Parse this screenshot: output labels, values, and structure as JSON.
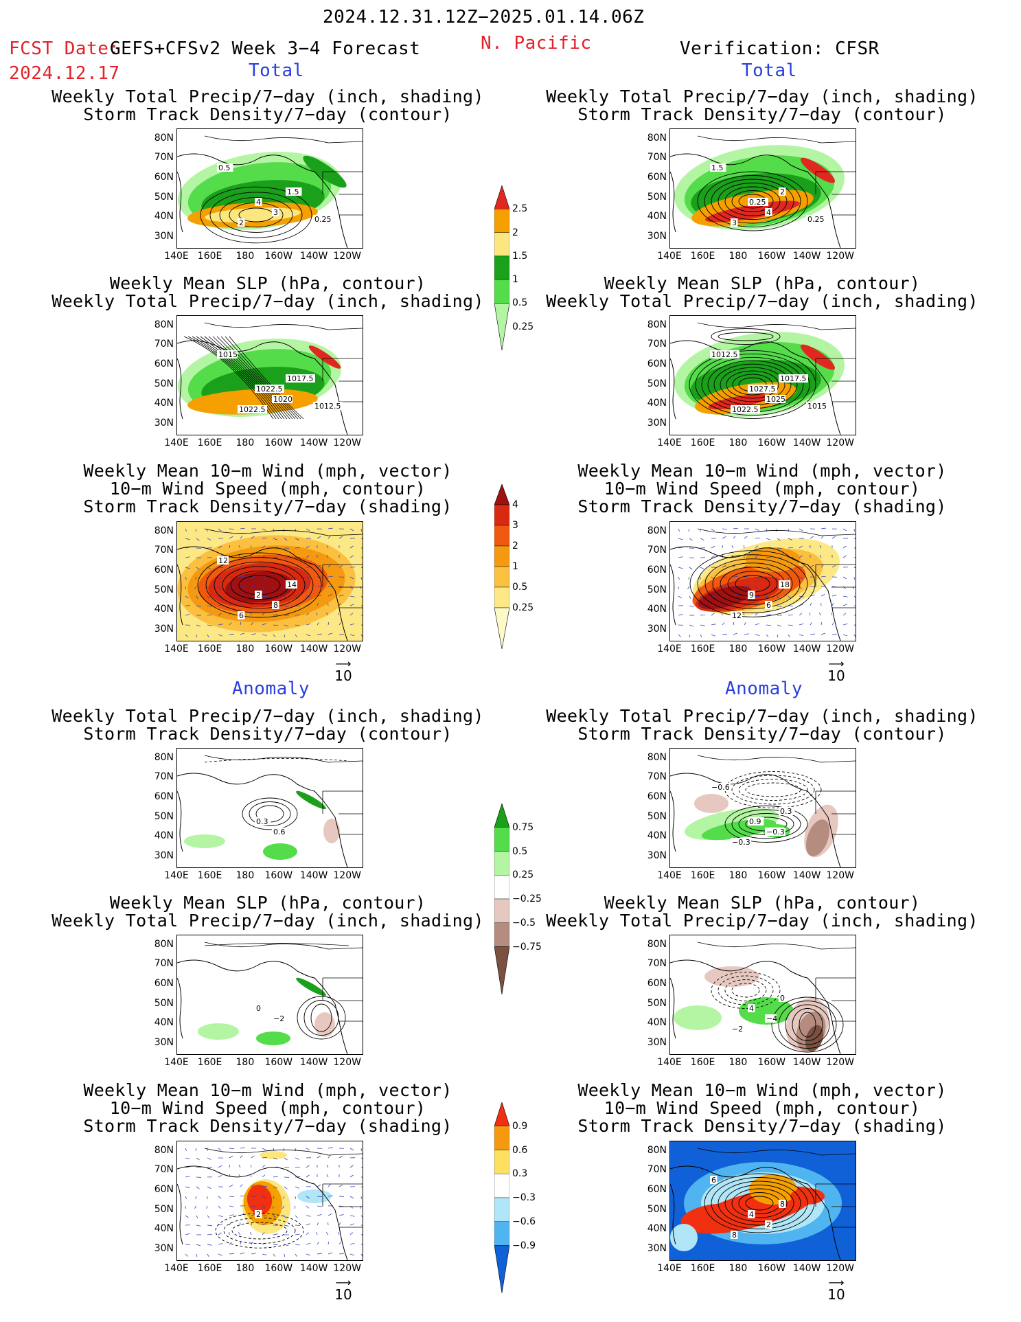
{
  "header": {
    "date_range": "2024.12.31.12Z−2025.01.14.06Z",
    "fcst_label": "FCST Date:",
    "fcst_model": "GEFS+CFSv2 Week 3−4 Forecast",
    "fcst_date": "2024.12.17",
    "region": "N. Pacific",
    "verification": "Verification: CFSR"
  },
  "sections": {
    "total": "Total",
    "anomaly": "Anomaly"
  },
  "panel_titles": {
    "precip_storm": [
      "Weekly Total Precip/7−day (inch, shading)",
      "Storm Track Density/7−day (contour)"
    ],
    "slp_precip": [
      "Weekly Mean SLP (hPa, contour)",
      "Weekly Total Precip/7−day (inch, shading)"
    ],
    "wind_storm": [
      "Weekly Mean 10−m Wind (mph, vector)",
      "10−m Wind Speed (mph, contour)",
      "Storm Track Density/7−day (shading)"
    ]
  },
  "axes": {
    "lat": [
      "80N",
      "70N",
      "60N",
      "50N",
      "40N",
      "30N"
    ],
    "lon": [
      "140E",
      "160E",
      "180",
      "160W",
      "140W",
      "120W"
    ]
  },
  "vector_ref": "10",
  "colorbars": {
    "precip_total": {
      "labels": [
        "2.5",
        "2",
        "1.5",
        "1",
        "0.5",
        "0.25"
      ],
      "colors": [
        "#e02820",
        "#f5a000",
        "#fce680",
        "#1aa01a",
        "#54dc4a",
        "#b4f5a4"
      ]
    },
    "storm_total": {
      "labels": [
        "4",
        "3",
        "2",
        "1",
        "0.5",
        "0.25"
      ],
      "colors": [
        "#a01010",
        "#d82a10",
        "#f05a10",
        "#f59a10",
        "#fbc040",
        "#fde886",
        "#fefac8"
      ]
    },
    "precip_anom": {
      "labels": [
        "0.75",
        "0.5",
        "0.25",
        "−0.25",
        "−0.5",
        "−0.75"
      ],
      "colors": [
        "#1aa01a",
        "#54dc4a",
        "#b4f5a4",
        "#ffffff",
        "#e6c8c0",
        "#b48c80",
        "#7a5040"
      ]
    },
    "storm_anom": {
      "labels": [
        "0.9",
        "0.6",
        "0.3",
        "−0.3",
        "−0.6",
        "−0.9"
      ],
      "colors": [
        "#f03010",
        "#f59a10",
        "#fde060",
        "#ffffff",
        "#b0e6f8",
        "#50b4f0",
        "#1060d8"
      ]
    }
  },
  "contour_labels": {
    "fc_precip_total": [
      "4",
      "3",
      "2",
      "1.5",
      "0.5",
      "0.25"
    ],
    "ob_precip_total": [
      "0.25",
      "4",
      "3",
      "2",
      "1.5",
      "0.25"
    ],
    "fc_slp_total": [
      "1022.5",
      "1020",
      "1022.5",
      "1017.5",
      "1015",
      "1012.5"
    ],
    "ob_slp_total": [
      "1027.5",
      "1025",
      "1022.5",
      "1017.5",
      "1012.5",
      "1015"
    ],
    "fc_wind_total": [
      "2",
      "8",
      "6",
      "14",
      "12"
    ],
    "ob_wind_total": [
      "9",
      "6",
      "12",
      "18"
    ],
    "fc_precip_anom": [
      "0.3",
      "0.6"
    ],
    "ob_precip_anom": [
      "0.9",
      "−0.3",
      "−0.3",
      "0.3",
      "−0.6"
    ],
    "fc_slp_anom": [
      "0",
      "−2"
    ],
    "ob_slp_anom": [
      "4",
      "−4",
      "−2",
      "0"
    ],
    "fc_wind_anom": [
      "2"
    ],
    "ob_wind_anom": [
      "4",
      "2",
      "8",
      "8",
      "6"
    ]
  }
}
